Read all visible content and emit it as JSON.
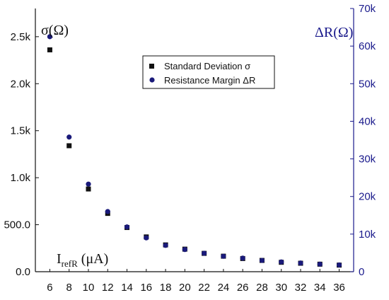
{
  "chart_data": {
    "type": "scatter",
    "x": [
      6,
      8,
      10,
      12,
      14,
      16,
      18,
      20,
      22,
      24,
      26,
      28,
      30,
      32,
      34,
      36
    ],
    "x_ticks": [
      "6",
      "8",
      "10",
      "12",
      "14",
      "16",
      "18",
      "20",
      "22",
      "24",
      "26",
      "28",
      "30",
      "32",
      "34",
      "36"
    ],
    "xlim": [
      4.5,
      37.5
    ],
    "xlabel": {
      "main": "I",
      "subscript": "refR",
      "unit": "(μA)"
    },
    "y_left": {
      "label": "σ(Ω)",
      "lim": [
        0,
        2800
      ],
      "ticks": [
        0,
        500,
        1000,
        1500,
        2000,
        2500
      ],
      "tick_labels": [
        "0.0",
        "500.0",
        "1.0k",
        "1.5k",
        "2.0k",
        "2.5k"
      ]
    },
    "y_right": {
      "label": "ΔR(Ω)",
      "lim": [
        0,
        70000
      ],
      "ticks": [
        0,
        10000,
        20000,
        30000,
        40000,
        50000,
        60000,
        70000
      ],
      "tick_labels": [
        "0",
        "10k",
        "20k",
        "30k",
        "40k",
        "50k",
        "60k",
        "70k"
      ],
      "color": "#1a1a8c"
    },
    "series": [
      {
        "name": "Standard Deviation σ",
        "axis": "left",
        "marker": "square",
        "color": "#111111",
        "values": [
          2360,
          1340,
          880,
          620,
          470,
          370,
          285,
          240,
          195,
          165,
          140,
          120,
          100,
          90,
          80,
          70
        ]
      },
      {
        "name": "Resistance Margin ΔR",
        "axis": "right",
        "marker": "circle",
        "color": "#1a1a7a",
        "values": [
          62500,
          35800,
          23300,
          16000,
          11900,
          9000,
          7000,
          5900,
          4900,
          4100,
          3600,
          3000,
          2600,
          2300,
          2000,
          1800
        ]
      }
    ],
    "legend": "top-center",
    "grid": false
  }
}
